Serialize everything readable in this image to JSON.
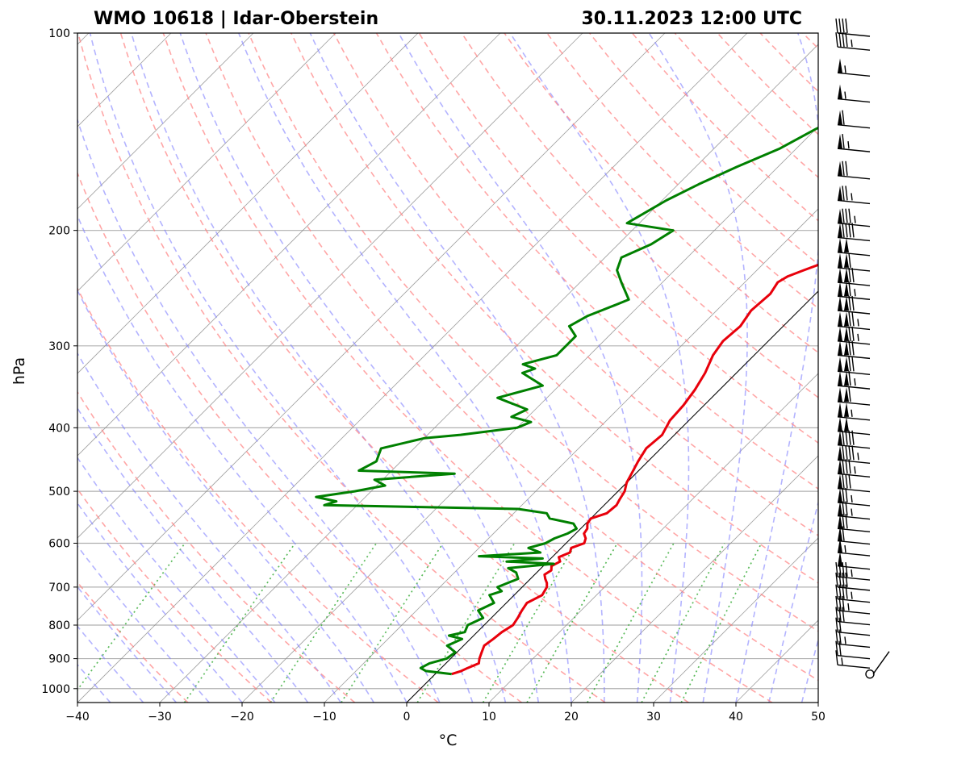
{
  "chart_data": {
    "type": "line",
    "title_left": "WMO 10618 | Idar-Oberstein",
    "title_right": "30.11.2023 12:00 UTC",
    "xlabel": "°C",
    "ylabel": "hPa",
    "xlim": [
      -40,
      50
    ],
    "ylim": [
      1050,
      100
    ],
    "y_scale": "log",
    "x_ticks": [
      -40,
      -30,
      -20,
      -10,
      0,
      10,
      20,
      30,
      40,
      50
    ],
    "x_tick_labels": [
      "−40",
      "−30",
      "−20",
      "−10",
      "0",
      "10",
      "20",
      "30",
      "40",
      "50"
    ],
    "y_ticks": [
      100,
      200,
      300,
      400,
      500,
      600,
      700,
      800,
      900,
      1000
    ],
    "y_tick_labels": [
      "100",
      "200",
      "300",
      "400",
      "500",
      "600",
      "700",
      "800",
      "900",
      "1000"
    ],
    "grid": true,
    "background_lines": {
      "isotherms_skewed": "gray thin",
      "dry_adiabats": "red dashed",
      "moist_adiabats": "blue dashed",
      "mixing_ratio": "green dotted"
    },
    "colors": {
      "temperature": "#e8000b",
      "dewpoint": "#008000",
      "dry_adiabat": "#ff8080",
      "moist_adiabat": "#8080ff",
      "mixing_ratio": "#33aa33",
      "grid": "#b0b0b0"
    },
    "series": [
      {
        "role": "temperature",
        "p": [
          950,
          940,
          930,
          915,
          900,
          880,
          860,
          840,
          820,
          800,
          780,
          760,
          740,
          720,
          700,
          690,
          680,
          670,
          660,
          650,
          640,
          630,
          620,
          610,
          600,
          590,
          580,
          570,
          560,
          550,
          540,
          525,
          515,
          500,
          485,
          470,
          450,
          430,
          410,
          390,
          370,
          350,
          330,
          310,
          295,
          280,
          265,
          250,
          240,
          235,
          230,
          225,
          220,
          210,
          200,
          190,
          180,
          170,
          160,
          150,
          140,
          130,
          120,
          110,
          100
        ],
        "t": [
          2.0,
          2.8,
          3.2,
          4.0,
          3.5,
          3.0,
          2.5,
          2.8,
          3.0,
          3.5,
          3.2,
          2.8,
          2.5,
          3.4,
          3.0,
          2.5,
          1.8,
          1.2,
          1.5,
          1.0,
          1.5,
          0.8,
          1.6,
          1.2,
          2.2,
          1.8,
          1.0,
          0.8,
          0.2,
          0.0,
          1.3,
          1.5,
          1.2,
          0.8,
          0.0,
          -0.5,
          -1.2,
          -1.8,
          -1.5,
          -2.3,
          -2.5,
          -3.0,
          -3.8,
          -5.0,
          -5.5,
          -5.2,
          -5.8,
          -5.5,
          -6.0,
          -5.5,
          -4.3,
          -3.0,
          -1.5,
          0.5,
          1.5,
          3.0,
          5.5,
          7.5,
          9.0,
          11.0,
          13.0,
          15.5,
          18.0,
          21.0,
          24.0
        ]
      },
      {
        "role": "dewpoint",
        "p": [
          950,
          940,
          930,
          915,
          900,
          880,
          860,
          840,
          830,
          820,
          800,
          780,
          760,
          740,
          720,
          710,
          700,
          680,
          665,
          655,
          645,
          640,
          633,
          628,
          620,
          610,
          600,
          590,
          580,
          570,
          560,
          550,
          540,
          532,
          525,
          518,
          510,
          500,
          490,
          480,
          470,
          465,
          450,
          430,
          415,
          410,
          400,
          392,
          385,
          375,
          360,
          345,
          330,
          325,
          320,
          310,
          300,
          290,
          280,
          270,
          260,
          255,
          240,
          230,
          220,
          210,
          200,
          195,
          180,
          170,
          160,
          150,
          140,
          130,
          120,
          110,
          100
        ],
        "t": [
          2.0,
          -1.5,
          -2.5,
          -2.0,
          -0.5,
          -0.2,
          -2.0,
          -1.0,
          -3.0,
          -1.5,
          -2.0,
          -1.0,
          -2.5,
          -1.5,
          -3.0,
          -2.0,
          -3.0,
          -1.5,
          -2.5,
          -4.0,
          1.0,
          -5.0,
          -1.0,
          -9.0,
          -2.0,
          -4.0,
          -2.5,
          -2.0,
          -1.0,
          -0.5,
          -1.5,
          -5.0,
          -6.0,
          -10.0,
          -34.0,
          -33.0,
          -36.0,
          -32.0,
          -29.0,
          -31.0,
          -22.0,
          -34.0,
          -33.0,
          -34.0,
          -30.0,
          -26.0,
          -20.0,
          -19.0,
          -22.0,
          -21.0,
          -26.0,
          -22.0,
          -26.0,
          -25.0,
          -27.0,
          -24.0,
          -24.0,
          -24.0,
          -26.0,
          -25.0,
          -23.0,
          -22.0,
          -25.0,
          -27.0,
          -28.0,
          -26.0,
          -25.0,
          -31.5,
          -29.5,
          -27.5,
          -25.0,
          -22.0,
          -20.0,
          -17.0,
          -15.0,
          -13.0,
          -12.0
        ]
      }
    ],
    "wind_barbs": {
      "p": [
        950,
        920,
        890,
        855,
        820,
        790,
        760,
        730,
        700,
        675,
        650,
        620,
        595,
        570,
        545,
        520,
        495,
        470,
        448,
        425,
        405,
        385,
        365,
        345,
        328,
        310,
        295,
        280,
        265,
        252,
        240,
        228,
        216,
        205,
        195,
        180,
        165,
        150,
        138,
        126,
        115,
        105,
        100
      ],
      "speed_kt": [
        5,
        15,
        20,
        25,
        20,
        30,
        35,
        45,
        40,
        45,
        50,
        55,
        60,
        70,
        75,
        75,
        80,
        85,
        95,
        90,
        100,
        105,
        110,
        115,
        120,
        120,
        125,
        125,
        120,
        115,
        120,
        110,
        100,
        90,
        85,
        75,
        70,
        65,
        60,
        55,
        55,
        45,
        40
      ]
    }
  }
}
